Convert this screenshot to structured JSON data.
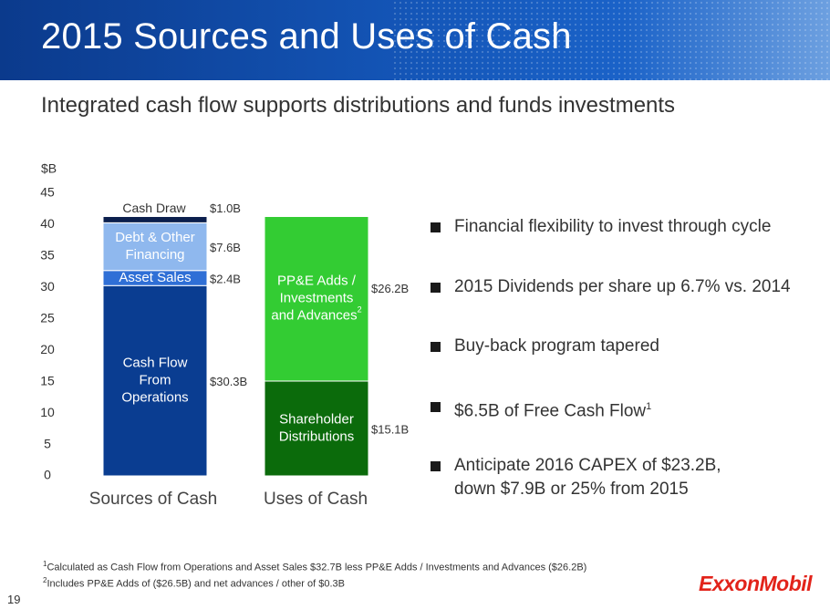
{
  "title": "2015 Sources and Uses of Cash",
  "subtitle": "Integrated cash flow supports distributions and funds investments",
  "chart_data": {
    "type": "bar",
    "stacked": true,
    "yunit": "$B",
    "ylim": [
      0,
      45
    ],
    "yticks": [
      0,
      5,
      10,
      15,
      20,
      25,
      30,
      35,
      40,
      45
    ],
    "categories": [
      "Sources of Cash",
      "Uses of Cash"
    ],
    "stacks": [
      {
        "category": "Sources of Cash",
        "segments": [
          {
            "name": "Cash Flow From Operations",
            "value": 30.3,
            "value_label": "$30.3B",
            "color": "#0a3d91",
            "text_color": "#ffffff"
          },
          {
            "name": "Asset Sales",
            "value": 2.4,
            "value_label": "$2.4B",
            "color": "#2f6fd6",
            "text_color": "#ffffff"
          },
          {
            "name": "Debt & Other Financing",
            "value": 7.6,
            "value_label": "$7.6B",
            "color": "#8fb8ee",
            "text_color": "#ffffff"
          },
          {
            "name": "Cash Draw",
            "value": 1.0,
            "value_label": "$1.0B",
            "color": "#0b1f4d",
            "text_color": "#333333"
          }
        ]
      },
      {
        "category": "Uses of Cash",
        "segments": [
          {
            "name": "Shareholder Distributions",
            "value": 15.1,
            "value_label": "$15.1B",
            "color": "#0b6b0b",
            "text_color": "#ffffff"
          },
          {
            "name": "PP&E Adds / Investments and Advances",
            "name_sup": "2",
            "value": 26.2,
            "value_label": "$26.2B",
            "color": "#33cc33",
            "text_color": "#ffffff"
          }
        ]
      }
    ]
  },
  "bullets": [
    {
      "text": "Financial flexibility to invest through cycle"
    },
    {
      "text": "2015 Dividends per share up 6.7% vs. 2014"
    },
    {
      "text": "Buy-back program tapered"
    },
    {
      "text": "$6.5B of Free Cash Flow",
      "sup": "1"
    },
    {
      "text": "Anticipate 2016 CAPEX of $23.2B,",
      "text2": "down $7.9B or 25% from 2015"
    }
  ],
  "footnotes": [
    {
      "marker": "1",
      "text": "Calculated as Cash Flow from Operations and Asset Sales $32.7B less PP&E Adds / Investments and Advances ($26.2B)"
    },
    {
      "marker": "2",
      "text": "Includes PP&E Adds of ($26.5B) and net advances / other of $0.3B"
    }
  ],
  "page_number": "19",
  "logo": "ExxonMobil"
}
